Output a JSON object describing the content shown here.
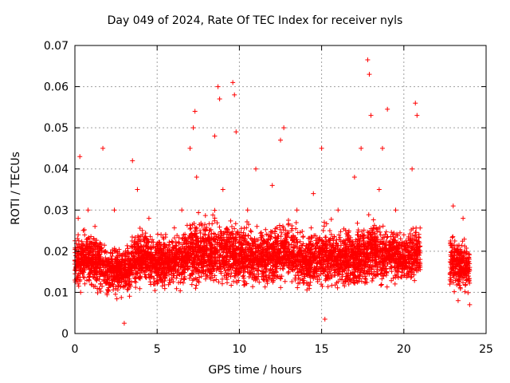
{
  "chart_data": {
    "type": "scatter",
    "title": "Day 049 of 2024, Rate Of TEC Index for receiver nyls",
    "xlabel": "GPS time / hours",
    "ylabel": "ROTI / TECUs",
    "xlim": [
      0,
      25
    ],
    "ylim": [
      0,
      0.07
    ],
    "xticks": [
      0,
      5,
      10,
      15,
      20,
      25
    ],
    "yticks": [
      0,
      0.01,
      0.02,
      0.03,
      0.04,
      0.05,
      0.06,
      0.07
    ],
    "xtick_labels": [
      "0",
      "5",
      "10",
      "15",
      "20",
      "25"
    ],
    "ytick_labels": [
      "0",
      "0.01",
      "0.02",
      "0.03",
      "0.04",
      "0.05",
      "0.06",
      "0.07"
    ],
    "grid": true,
    "marker": "+",
    "color": "#ff0000",
    "series": [
      {
        "x": [
          0.0,
          0.1,
          0.2,
          0.3,
          0.35,
          0.5,
          0.8,
          1.0,
          1.3,
          1.7,
          2.0,
          2.4,
          3.0,
          3.1,
          3.5,
          3.8,
          4.0,
          4.5,
          5.0,
          5.4,
          6.0,
          6.5,
          7.0,
          7.2,
          7.3,
          7.4,
          7.5,
          8.0,
          8.5,
          8.7,
          8.8,
          9.0,
          9.3,
          9.6,
          9.7,
          9.8,
          10.0,
          10.5,
          11.0,
          11.5,
          12.0,
          12.5,
          12.7,
          13.0,
          13.5,
          14.0,
          14.5,
          15.0,
          15.2,
          15.5,
          16.0,
          16.5,
          17.0,
          17.4,
          17.8,
          17.9,
          18.0,
          18.5,
          18.7,
          19.0,
          19.5,
          20.0,
          20.5,
          20.7,
          20.8,
          20.9,
          22.8,
          23.0,
          23.3,
          23.6,
          23.9,
          24.0
        ],
        "y": [
          0.013,
          0.02,
          0.028,
          0.043,
          0.01,
          0.015,
          0.03,
          0.012,
          0.022,
          0.045,
          0.015,
          0.03,
          0.0025,
          0.018,
          0.042,
          0.035,
          0.02,
          0.028,
          0.015,
          0.023,
          0.018,
          0.03,
          0.045,
          0.05,
          0.054,
          0.038,
          0.015,
          0.02,
          0.048,
          0.06,
          0.057,
          0.035,
          0.025,
          0.061,
          0.058,
          0.049,
          0.015,
          0.03,
          0.04,
          0.022,
          0.036,
          0.047,
          0.05,
          0.015,
          0.03,
          0.02,
          0.034,
          0.045,
          0.0035,
          0.025,
          0.03,
          0.02,
          0.038,
          0.045,
          0.0665,
          0.063,
          0.053,
          0.035,
          0.045,
          0.0545,
          0.03,
          0.024,
          0.04,
          0.056,
          0.053,
          0.016,
          0.012,
          0.031,
          0.008,
          0.028,
          0.015,
          0.007
        ]
      }
    ],
    "envelope": {
      "description_free": true,
      "x": [
        0,
        1,
        2,
        3,
        4,
        5,
        6,
        7,
        8,
        9,
        10,
        11,
        12,
        13,
        14,
        15,
        16,
        17,
        18,
        19,
        20,
        21,
        22.8,
        24
      ],
      "low": [
        0.008,
        0.006,
        0.006,
        0.006,
        0.007,
        0.007,
        0.007,
        0.007,
        0.006,
        0.006,
        0.007,
        0.007,
        0.007,
        0.007,
        0.007,
        0.007,
        0.006,
        0.006,
        0.006,
        0.006,
        0.007,
        0.008,
        0.006,
        0.006
      ],
      "high": [
        0.028,
        0.03,
        0.025,
        0.024,
        0.03,
        0.028,
        0.028,
        0.032,
        0.034,
        0.034,
        0.031,
        0.03,
        0.031,
        0.033,
        0.028,
        0.03,
        0.031,
        0.03,
        0.034,
        0.032,
        0.03,
        0.031,
        0.029,
        0.026
      ]
    }
  }
}
